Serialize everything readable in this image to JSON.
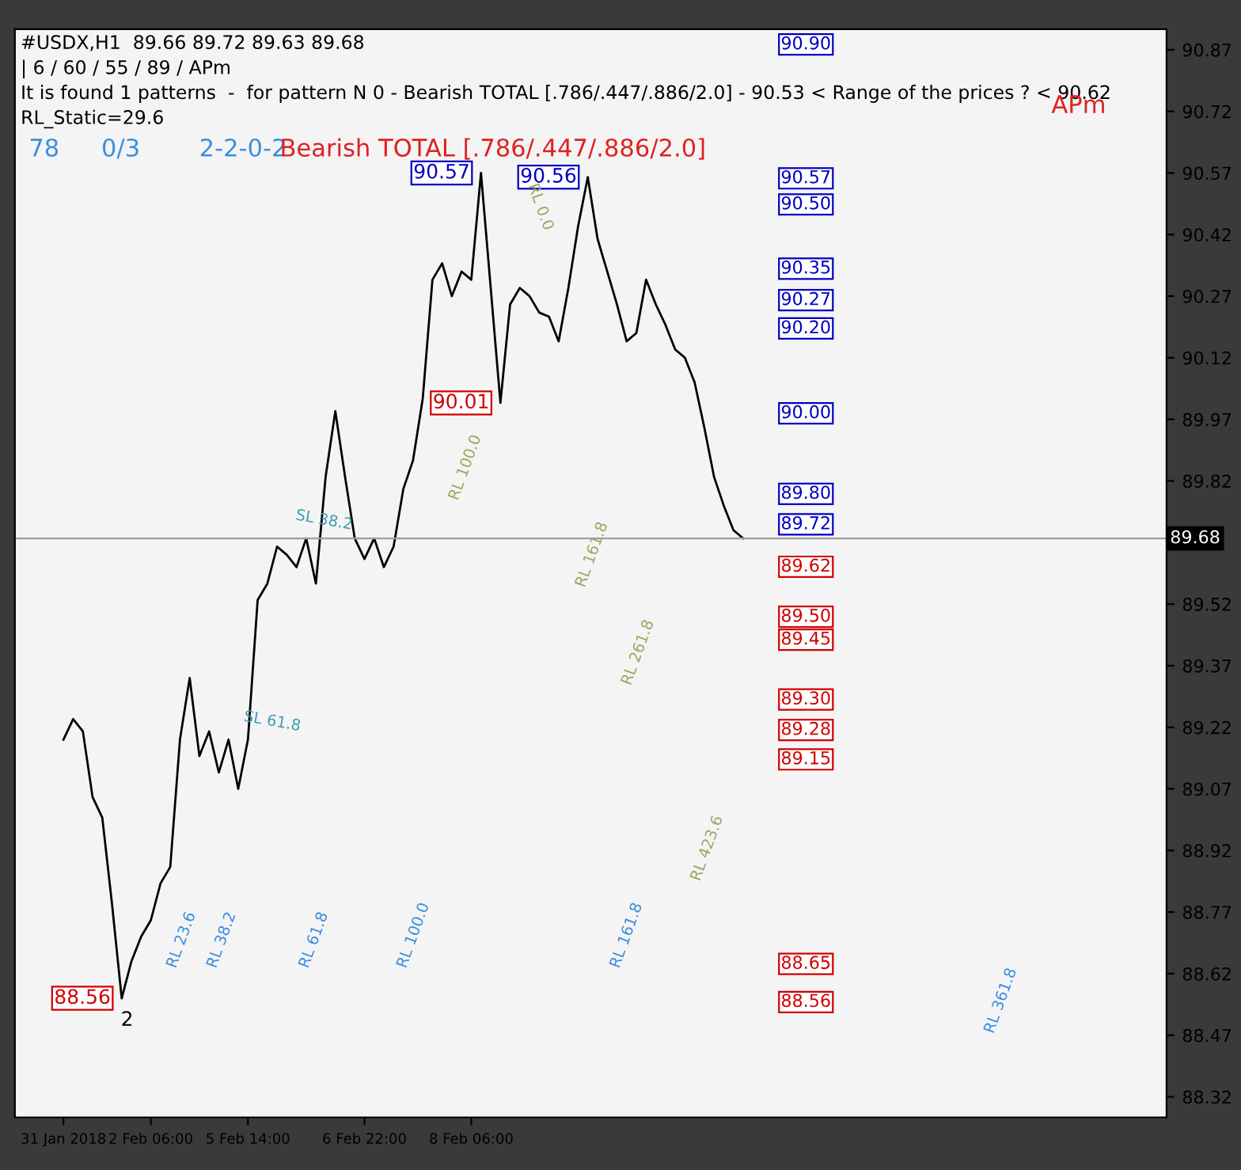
{
  "chart_data": {
    "type": "line",
    "title": "#USDX,H1  89.66 89.72 89.63 89.68",
    "categories": [
      "31 Jan 2018",
      null,
      null,
      null,
      null,
      null,
      null,
      null,
      null,
      "2 Feb 06:00",
      null,
      null,
      null,
      null,
      null,
      null,
      null,
      null,
      null,
      "5 Feb 14:00",
      null,
      null,
      null,
      null,
      null,
      null,
      null,
      null,
      null,
      null,
      null,
      "6 Feb 22:00",
      null,
      null,
      null,
      null,
      null,
      null,
      null,
      null,
      null,
      null,
      "8 Feb 06:00",
      null,
      null,
      null,
      null,
      null,
      null,
      null,
      null,
      null,
      null,
      null,
      null,
      null,
      null,
      null,
      null,
      null,
      null,
      null,
      null,
      null,
      null,
      null,
      null,
      null,
      null,
      null,
      null
    ],
    "series": [
      {
        "color": "#000000",
        "values": [
          89.19,
          89.24,
          89.21,
          89.05,
          89.0,
          88.79,
          88.56,
          88.65,
          88.71,
          88.75,
          88.84,
          88.88,
          89.19,
          89.34,
          89.15,
          89.21,
          89.11,
          89.19,
          89.07,
          89.19,
          89.53,
          89.57,
          89.66,
          89.64,
          89.61,
          89.68,
          89.57,
          89.83,
          89.99,
          89.83,
          89.68,
          89.63,
          89.68,
          89.61,
          89.66,
          89.8,
          89.87,
          90.02,
          90.31,
          90.35,
          90.27,
          90.33,
          90.31,
          90.57,
          90.29,
          90.01,
          90.25,
          90.29,
          90.27,
          90.23,
          90.22,
          90.16,
          90.29,
          90.44,
          90.56,
          90.41,
          90.33,
          90.25,
          90.16,
          90.18,
          90.31,
          90.25,
          90.2,
          90.14,
          90.12,
          90.06,
          89.95,
          89.83,
          89.76,
          89.7,
          89.68
        ],
        "value_labels": [
          null,
          null,
          null,
          null,
          null,
          null,
          "88.56",
          null,
          null,
          null,
          null,
          null,
          null,
          null,
          null,
          null,
          null,
          null,
          null,
          null,
          null,
          null,
          null,
          null,
          null,
          null,
          null,
          null,
          null,
          null,
          null,
          null,
          null,
          null,
          null,
          null,
          null,
          null,
          null,
          null,
          null,
          null,
          null,
          "90.57",
          null,
          "90.01",
          null,
          null,
          null,
          null,
          null,
          null,
          null,
          null,
          "90.56",
          null,
          null,
          null,
          null,
          null,
          null,
          null,
          null,
          null,
          null,
          null,
          null,
          null,
          null,
          null,
          null
        ]
      }
    ],
    "ylim": [
      88.27,
      90.92
    ],
    "yticks": [
      90.87,
      90.72,
      90.57,
      90.42,
      90.27,
      90.12,
      89.97,
      89.82,
      89.52,
      89.37,
      89.22,
      89.07,
      88.92,
      88.77,
      88.62,
      88.47,
      88.32
    ],
    "ref_lines": [
      {
        "axis": "y",
        "value": 89.68,
        "label": "89.68",
        "color": "#a0a0a0"
      }
    ],
    "grid": false,
    "marker": "none",
    "line_style": "solid",
    "annotations": [
      "| 6 / 60 / 55 / 89 / APm",
      "It is found 1 patterns  -  for pattern N 0 - Bearish TOTAL [.786/.447/.886/2.0] - 90.53 < Range of the prices ? < 90.62",
      "RL_Static=29.6",
      "78",
      "0/3",
      "2-2-0-2",
      "Bearish TOTAL [.786/.447/.886/2.0]",
      "APm",
      "2",
      "RL 0.0",
      "SL 38.2",
      "SL 61.8",
      "RL 23.6",
      "RL 38.2",
      "RL 61.8",
      "RL 100.0",
      "RL 161.8",
      "RL 100.0",
      "RL 161.8",
      "RL 261.8",
      "RL 423.6",
      "RL 361.8",
      "90.90",
      "90.57",
      "90.50",
      "90.35",
      "90.27",
      "90.20",
      "90.00",
      "89.80",
      "89.72",
      "89.62",
      "89.50",
      "89.45",
      "89.30",
      "89.28",
      "89.15",
      "88.65",
      "88.56"
    ]
  }
}
